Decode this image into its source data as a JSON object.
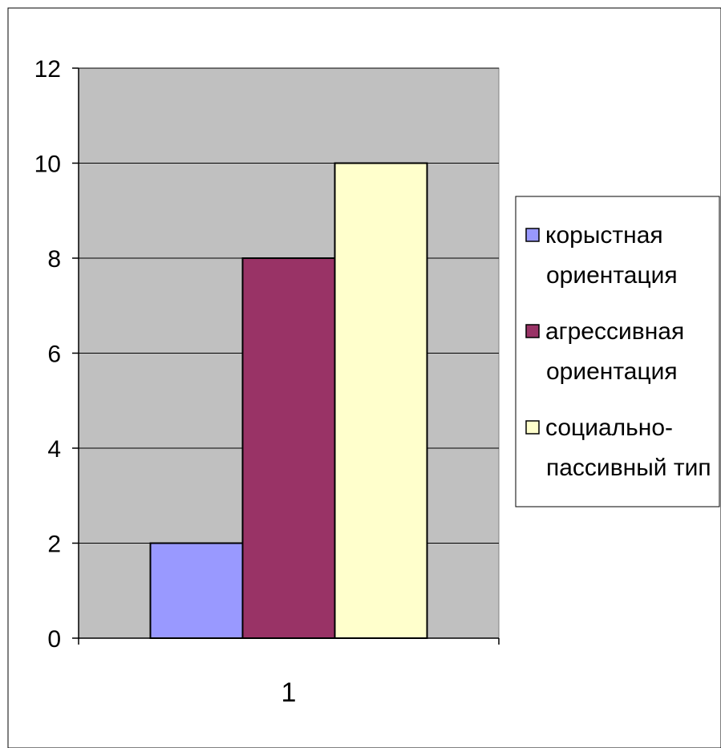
{
  "chart_data": {
    "type": "bar",
    "categories": [
      "1"
    ],
    "series": [
      {
        "name": "корыстная ориентация",
        "legend_lines": [
          "корыстная",
          "ориентация"
        ],
        "values": [
          2
        ],
        "color": "#9999ff"
      },
      {
        "name": "агрессивная ориентация",
        "legend_lines": [
          "агрессивная",
          "ориентация"
        ],
        "values": [
          8
        ],
        "color": "#993366"
      },
      {
        "name": "социально-пассивный тип",
        "legend_lines": [
          "социально-",
          "пассивный тип"
        ],
        "values": [
          10
        ],
        "color": "#ffffcc"
      }
    ],
    "ylim": [
      0,
      12
    ],
    "yticks": [
      "0",
      "2",
      "4",
      "6",
      "8",
      "10",
      "12"
    ],
    "grid": true,
    "plot_background": "#c0c0c0",
    "legend_position": "right",
    "title": "",
    "xlabel": "",
    "ylabel": ""
  }
}
